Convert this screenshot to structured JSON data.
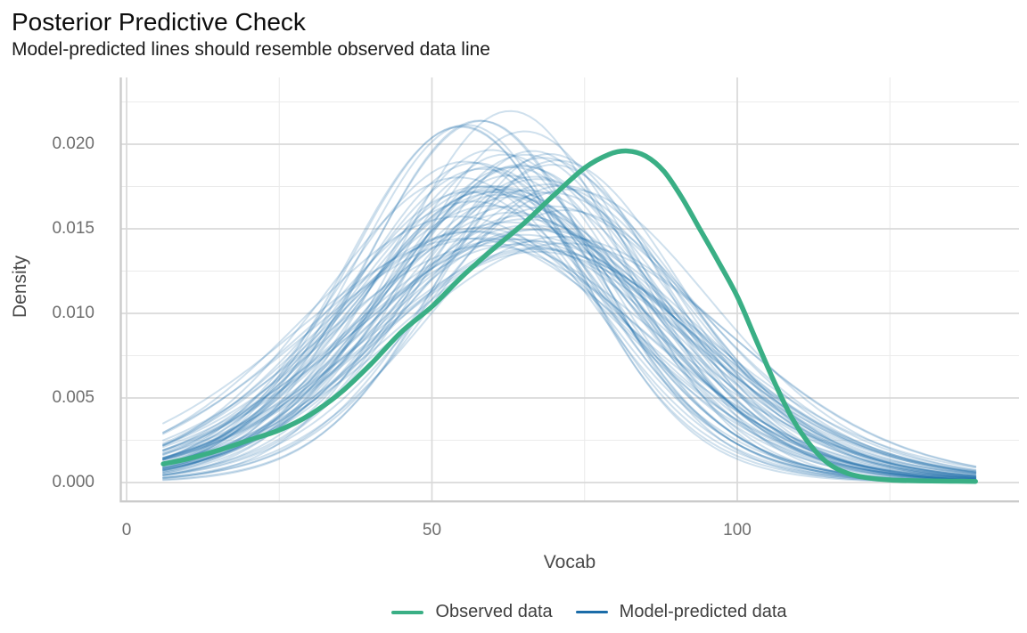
{
  "chart_data": {
    "type": "line",
    "title": "Posterior Predictive Check",
    "subtitle": "Model-predicted lines should resemble observed data line",
    "xlabel": "Vocab",
    "ylabel": "Density",
    "x_tick_labels": [
      "0",
      "50",
      "100"
    ],
    "y_tick_labels": [
      "0.000",
      "0.005",
      "0.010",
      "0.015",
      "0.020"
    ],
    "x_major_ticks": [
      0,
      50,
      100
    ],
    "x_minor_ticks": [
      25,
      75,
      125
    ],
    "y_major_ticks": [
      0,
      0.005,
      0.01,
      0.015,
      0.02
    ],
    "y_minor_ticks": [
      0.0025,
      0.0075,
      0.0125,
      0.0175,
      0.0225
    ],
    "xlim": [
      -1,
      146.5
    ],
    "ylim": [
      -0.00105,
      0.0239
    ],
    "x_data_range": [
      6,
      139
    ],
    "grid": true,
    "legend_position": "bottom",
    "colors": {
      "observed": "#3aaf85",
      "predicted": "#1b6ca8",
      "grid_major": "#d9d9d9",
      "grid_minor": "#ebebeb",
      "axis_line": "#cbcbcb"
    },
    "series": [
      {
        "name": "Observed data",
        "role": "observed-density-curve",
        "color": "#3aaf85",
        "line_width": 5.5,
        "points": [
          [
            6,
            0.0011
          ],
          [
            10,
            0.0014
          ],
          [
            15,
            0.0019
          ],
          [
            20,
            0.0025
          ],
          [
            25,
            0.0031
          ],
          [
            30,
            0.004
          ],
          [
            35,
            0.0053
          ],
          [
            40,
            0.007
          ],
          [
            45,
            0.0089
          ],
          [
            50,
            0.0104
          ],
          [
            55,
            0.0122
          ],
          [
            60,
            0.0138
          ],
          [
            65,
            0.0153
          ],
          [
            70,
            0.017
          ],
          [
            75,
            0.0186
          ],
          [
            79,
            0.0194
          ],
          [
            82,
            0.0196
          ],
          [
            85,
            0.0193
          ],
          [
            88,
            0.0184
          ],
          [
            91,
            0.0168
          ],
          [
            94,
            0.0149
          ],
          [
            97,
            0.013
          ],
          [
            100,
            0.011
          ],
          [
            103,
            0.0085
          ],
          [
            106,
            0.006
          ],
          [
            109,
            0.0038
          ],
          [
            112,
            0.0022
          ],
          [
            115,
            0.0011
          ],
          [
            118,
            0.00055
          ],
          [
            121,
            0.0003
          ],
          [
            125,
            0.00015
          ],
          [
            130,
            0.0001
          ],
          [
            135,
            8e-05
          ],
          [
            139,
            7e-05
          ]
        ]
      },
      {
        "name": "Model-predicted data",
        "role": "posterior-predictive-density-ensemble",
        "color": "#1b6ca8",
        "line_width": 2,
        "alpha": 0.21,
        "n_draws": 70,
        "seed": 42,
        "mu_range": [
          54,
          72
        ],
        "sigma_range": [
          17,
          27
        ],
        "peak_density_range": [
          0.013,
          0.023
        ],
        "note": "ensemble of simulated kernel-density curves over Vocab 6 to 139"
      }
    ]
  }
}
